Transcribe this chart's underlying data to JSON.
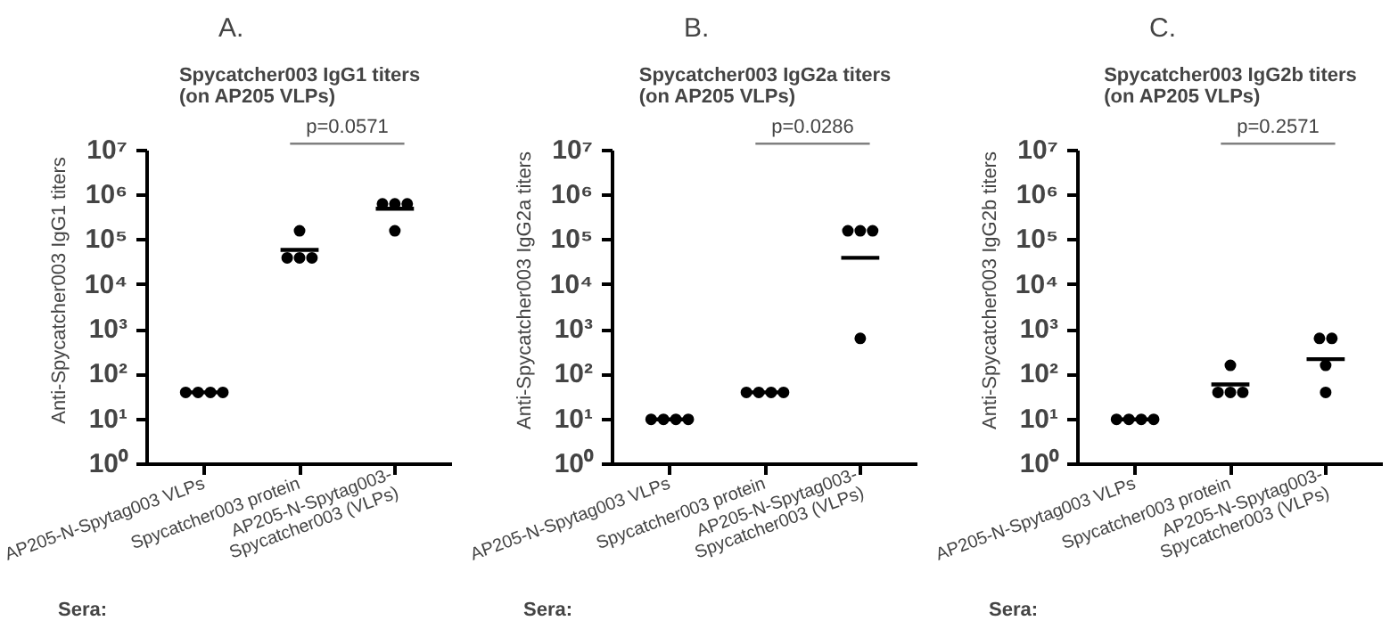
{
  "chart_data": [
    {
      "type": "scatter",
      "title": "Spycatcher003 IgG1 titers\n(on AP205 VLPs)",
      "ylabel": "Anti-Spycatcher003 IgG1 titers",
      "categories": [
        "AP205-N-Spytag003 VLPs",
        "Spycatcher003 protein",
        "AP205-N-Spytag003-\nSpycatcher003 (VLPs)"
      ],
      "series": [
        {
          "marker": "circle",
          "color": "#000000",
          "x": [
            "AP205-N-Spytag003 VLPs",
            "AP205-N-Spytag003 VLPs",
            "AP205-N-Spytag003 VLPs",
            "AP205-N-Spytag003 VLPs",
            "Spycatcher003 protein",
            "Spycatcher003 protein",
            "Spycatcher003 protein",
            "Spycatcher003 protein",
            "AP205-N-Spytag003-\nSpycatcher003 (VLPs)",
            "AP205-N-Spytag003-\nSpycatcher003 (VLPs)",
            "AP205-N-Spytag003-\nSpycatcher003 (VLPs)",
            "AP205-N-Spytag003-\nSpycatcher003 (VLPs)"
          ],
          "values": [
            40,
            40,
            40,
            40,
            160000,
            40000,
            40000,
            40000,
            640000,
            640000,
            640000,
            160000
          ]
        },
        {
          "type": "box",
          "color": "#000000",
          "boxes": [
            {
              "low": 40,
              "q1": 40,
              "median": 40,
              "q3": 40,
              "high": 40
            },
            {
              "low": 60000,
              "q1": 60000,
              "median": 60000,
              "q3": 60000,
              "high": 60000
            },
            {
              "low": 500000,
              "q1": 500000,
              "median": 500000,
              "q3": 500000,
              "high": 500000
            }
          ]
        }
      ],
      "log": "y",
      "ylim": [
        1,
        10000000
      ],
      "yticks": [
        {
          "value": 1,
          "label": "10⁰"
        },
        {
          "value": 10,
          "label": "10¹"
        },
        {
          "value": 100,
          "label": "10²"
        },
        {
          "value": 1000,
          "label": "10³"
        },
        {
          "value": 10000,
          "label": "10⁴"
        },
        {
          "value": 100000,
          "label": "10⁵"
        },
        {
          "value": 1000000,
          "label": "10⁶"
        },
        {
          "value": 10000000,
          "label": "10⁷"
        }
      ],
      "annotations": [
        "A.",
        "Sera:",
        "p=0.0571"
      ]
    },
    {
      "type": "scatter",
      "title": "Spycatcher003 IgG2a titers\n(on AP205 VLPs)",
      "ylabel": "Anti-Spycatcher003 IgG2a titers",
      "categories": [
        "AP205-N-Spytag003 VLPs",
        "Spycatcher003 protein",
        "AP205-N-Spytag003-\nSpycatcher003 (VLPs)"
      ],
      "series": [
        {
          "marker": "circle",
          "color": "#000000",
          "x": [
            "AP205-N-Spytag003 VLPs",
            "AP205-N-Spytag003 VLPs",
            "AP205-N-Spytag003 VLPs",
            "AP205-N-Spytag003 VLPs",
            "Spycatcher003 protein",
            "Spycatcher003 protein",
            "Spycatcher003 protein",
            "Spycatcher003 protein",
            "AP205-N-Spytag003-\nSpycatcher003 (VLPs)",
            "AP205-N-Spytag003-\nSpycatcher003 (VLPs)",
            "AP205-N-Spytag003-\nSpycatcher003 (VLPs)",
            "AP205-N-Spytag003-\nSpycatcher003 (VLPs)"
          ],
          "values": [
            10,
            10,
            10,
            10,
            40,
            40,
            40,
            40,
            160000,
            160000,
            160000,
            640
          ]
        },
        {
          "type": "box",
          "color": "#000000",
          "boxes": [
            {
              "low": 10,
              "q1": 10,
              "median": 10,
              "q3": 10,
              "high": 10
            },
            {
              "low": 40,
              "q1": 40,
              "median": 40,
              "q3": 40,
              "high": 40
            },
            {
              "low": 40000,
              "q1": 40000,
              "median": 40000,
              "q3": 40000,
              "high": 40000
            }
          ]
        }
      ],
      "log": "y",
      "ylim": [
        1,
        10000000
      ],
      "yticks": [
        {
          "value": 1,
          "label": "10⁰"
        },
        {
          "value": 10,
          "label": "10¹"
        },
        {
          "value": 100,
          "label": "10²"
        },
        {
          "value": 1000,
          "label": "10³"
        },
        {
          "value": 10000,
          "label": "10⁴"
        },
        {
          "value": 100000,
          "label": "10⁵"
        },
        {
          "value": 1000000,
          "label": "10⁶"
        },
        {
          "value": 10000000,
          "label": "10⁷"
        }
      ],
      "annotations": [
        "B.",
        "Sera:",
        "p=0.0286"
      ]
    },
    {
      "type": "scatter",
      "title": "Spycatcher003 IgG2b titers\n(on AP205 VLPs)",
      "ylabel": "Anti-Spycatcher003 IgG2b titers",
      "categories": [
        "AP205-N-Spytag003 VLPs",
        "Spycatcher003 protein",
        "AP205-N-Spytag003-\nSpycatcher003 (VLPs)"
      ],
      "series": [
        {
          "marker": "circle",
          "color": "#000000",
          "x": [
            "AP205-N-Spytag003 VLPs",
            "AP205-N-Spytag003 VLPs",
            "AP205-N-Spytag003 VLPs",
            "AP205-N-Spytag003 VLPs",
            "Spycatcher003 protein",
            "Spycatcher003 protein",
            "Spycatcher003 protein",
            "Spycatcher003 protein",
            "AP205-N-Spytag003-\nSpycatcher003 (VLPs)",
            "AP205-N-Spytag003-\nSpycatcher003 (VLPs)",
            "AP205-N-Spytag003-\nSpycatcher003 (VLPs)",
            "AP205-N-Spytag003-\nSpycatcher003 (VLPs)"
          ],
          "values": [
            10,
            10,
            10,
            10,
            160,
            40,
            40,
            40,
            640,
            640,
            160,
            40
          ]
        },
        {
          "type": "box",
          "color": "#000000",
          "boxes": [
            {
              "low": 10,
              "q1": 10,
              "median": 10,
              "q3": 10,
              "high": 10
            },
            {
              "low": 60,
              "q1": 60,
              "median": 60,
              "q3": 60,
              "high": 60
            },
            {
              "low": 220,
              "q1": 220,
              "median": 220,
              "q3": 220,
              "high": 220
            }
          ]
        }
      ],
      "log": "y",
      "ylim": [
        1,
        10000000
      ],
      "yticks": [
        {
          "value": 1,
          "label": "10⁰"
        },
        {
          "value": 10,
          "label": "10¹"
        },
        {
          "value": 100,
          "label": "10²"
        },
        {
          "value": 1000,
          "label": "10³"
        },
        {
          "value": 10000,
          "label": "10⁴"
        },
        {
          "value": 100000,
          "label": "10⁵"
        },
        {
          "value": 1000000,
          "label": "10⁶"
        },
        {
          "value": 10000000,
          "label": "10⁷"
        }
      ],
      "annotations": [
        "C.",
        "Sera:",
        "p=0.2571"
      ]
    }
  ]
}
